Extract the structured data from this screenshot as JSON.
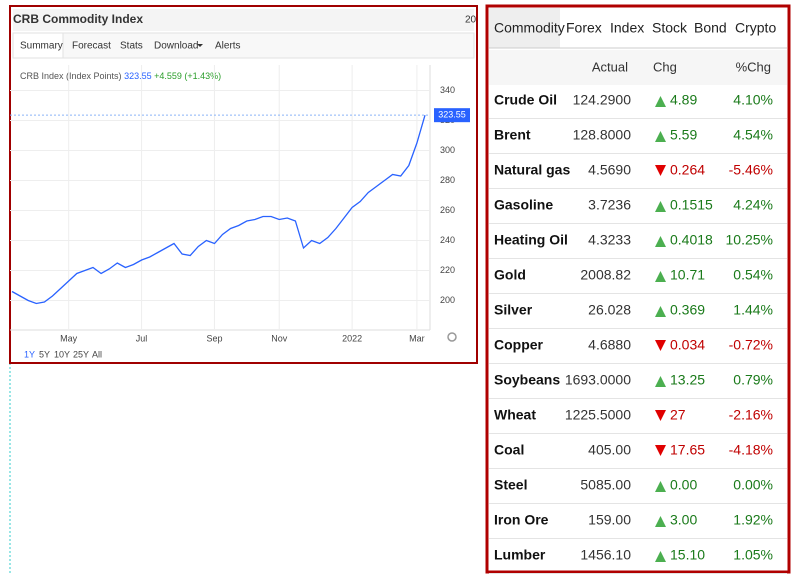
{
  "widget": {
    "title": "CRB Commodity Index",
    "corner_text": "20",
    "tabs": [
      "Summary",
      "Forecast",
      "Stats",
      "Download",
      "Alerts"
    ],
    "legend": {
      "name": "CRB Index (Index Points)",
      "change": "+4.559 (+1.43%)"
    },
    "ranges": [
      "1Y",
      "5Y",
      "10Y",
      "25Y",
      "All"
    ]
  },
  "chart_data": {
    "type": "line",
    "color": "#2962ff",
    "grid": true,
    "categories": [
      null,
      null,
      null,
      null,
      null,
      null,
      null,
      "May",
      null,
      null,
      null,
      null,
      null,
      null,
      null,
      null,
      "Jul",
      null,
      null,
      null,
      null,
      null,
      null,
      null,
      null,
      "Sep",
      null,
      null,
      null,
      null,
      null,
      null,
      null,
      "Nov",
      null,
      null,
      null,
      null,
      null,
      null,
      null,
      null,
      "2022",
      null,
      null,
      null,
      null,
      null,
      null,
      null,
      "Mar",
      null
    ],
    "values": [
      206,
      203,
      200,
      198,
      199,
      203,
      208,
      213,
      218,
      220,
      222,
      218,
      221,
      225,
      222,
      224,
      227,
      229,
      232,
      235,
      238,
      231,
      230,
      236,
      240,
      238,
      244,
      248,
      250,
      253,
      254,
      256,
      256,
      254,
      255,
      253,
      235,
      240,
      238,
      242,
      248,
      255,
      262,
      266,
      272,
      276,
      280,
      284,
      283,
      290,
      305,
      323.55
    ],
    "ylim": [
      187,
      357
    ],
    "yticks": [
      200,
      220,
      240,
      260,
      280,
      300,
      320,
      340
    ]
  },
  "table": {
    "tabs": [
      "Commodity",
      "Forex",
      "Index",
      "Stock",
      "Bond",
      "Crypto"
    ],
    "columns": [
      "Actual",
      "Chg",
      "%Chg"
    ],
    "rows": [
      [
        "Crude Oil",
        "124.2900",
        "4.89",
        "4.10%"
      ],
      [
        "Brent",
        "128.8000",
        "5.59",
        "4.54%"
      ],
      [
        "Natural gas",
        "4.5690",
        "0.264",
        "-5.46%"
      ],
      [
        "Gasoline",
        "3.7236",
        "0.1515",
        "4.24%"
      ],
      [
        "Heating Oil",
        "4.3233",
        "0.4018",
        "10.25%"
      ],
      [
        "Gold",
        "2008.82",
        "10.71",
        "0.54%"
      ],
      [
        "Silver",
        "26.028",
        "0.369",
        "1.44%"
      ],
      [
        "Copper",
        "4.6880",
        "0.034",
        "-0.72%"
      ],
      [
        "Soybeans",
        "1693.0000",
        "13.25",
        "0.79%"
      ],
      [
        "Wheat",
        "1225.5000",
        "27",
        "-2.16%"
      ],
      [
        "Coal",
        "405.00",
        "17.65",
        "-4.18%"
      ],
      [
        "Steel",
        "5085.00",
        "0.00",
        "0.00%"
      ],
      [
        "Iron Ore",
        "159.00",
        "3.00",
        "1.92%"
      ],
      [
        "Lumber",
        "1456.10",
        "15.10",
        "1.05%"
      ]
    ]
  }
}
